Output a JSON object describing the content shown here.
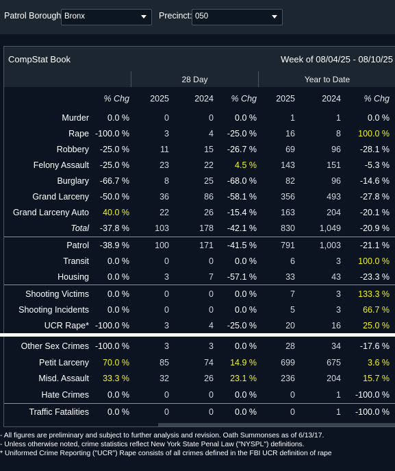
{
  "filters": {
    "borough_label": "Patrol Borough:",
    "borough_value": "Bronx",
    "precinct_label": "Precinct:",
    "precinct_value": "050"
  },
  "report": {
    "title": "CompStat Book",
    "week": "Week of 08/04/25 - 08/10/25",
    "group_28day": "28 Day",
    "group_ytd": "Year to Date"
  },
  "columns": [
    "% Chg",
    "2025",
    "2024",
    "% Chg",
    "2025",
    "2024",
    "% Chg"
  ],
  "rows": [
    {
      "label": "Murder",
      "italic": false,
      "c": [
        "0.0 %",
        "0",
        "0",
        "0.0 %",
        "1",
        "1",
        "0.0 %"
      ],
      "hi": [
        false,
        false,
        false,
        false,
        false,
        false,
        false
      ]
    },
    {
      "label": "Rape",
      "italic": false,
      "c": [
        "-100.0 %",
        "3",
        "4",
        "-25.0 %",
        "16",
        "8",
        "100.0 %"
      ],
      "hi": [
        false,
        false,
        false,
        false,
        false,
        false,
        true
      ]
    },
    {
      "label": "Robbery",
      "italic": false,
      "c": [
        "-25.0 %",
        "11",
        "15",
        "-26.7 %",
        "69",
        "96",
        "-28.1 %"
      ],
      "hi": [
        false,
        false,
        false,
        false,
        false,
        false,
        false
      ]
    },
    {
      "label": "Felony Assault",
      "italic": false,
      "c": [
        "-25.0 %",
        "23",
        "22",
        "4.5 %",
        "143",
        "151",
        "-5.3 %"
      ],
      "hi": [
        false,
        false,
        false,
        true,
        false,
        false,
        false
      ]
    },
    {
      "label": "Burglary",
      "italic": false,
      "c": [
        "-66.7 %",
        "8",
        "25",
        "-68.0 %",
        "82",
        "96",
        "-14.6 %"
      ],
      "hi": [
        false,
        false,
        false,
        false,
        false,
        false,
        false
      ]
    },
    {
      "label": "Grand Larceny",
      "italic": false,
      "c": [
        "-50.0 %",
        "36",
        "86",
        "-58.1 %",
        "356",
        "493",
        "-27.8 %"
      ],
      "hi": [
        false,
        false,
        false,
        false,
        false,
        false,
        false
      ]
    },
    {
      "label": "Grand Larceny Auto",
      "italic": false,
      "c": [
        "40.0 %",
        "22",
        "26",
        "-15.4 %",
        "163",
        "204",
        "-20.1 %"
      ],
      "hi": [
        true,
        false,
        false,
        false,
        false,
        false,
        false
      ]
    },
    {
      "label": "Total",
      "italic": true,
      "c": [
        "-37.8 %",
        "103",
        "178",
        "-42.1 %",
        "830",
        "1,049",
        "-20.9 %"
      ],
      "hi": [
        false,
        false,
        false,
        false,
        false,
        false,
        false
      ]
    },
    {
      "label": "Patrol",
      "italic": false,
      "c": [
        "-38.9 %",
        "100",
        "171",
        "-41.5 %",
        "791",
        "1,003",
        "-21.1 %"
      ],
      "hi": [
        false,
        false,
        false,
        false,
        false,
        false,
        false
      ]
    },
    {
      "label": "Transit",
      "italic": false,
      "c": [
        "0.0 %",
        "0",
        "0",
        "0.0 %",
        "6",
        "3",
        "100.0 %"
      ],
      "hi": [
        false,
        false,
        false,
        false,
        false,
        false,
        true
      ]
    },
    {
      "label": "Housing",
      "italic": false,
      "c": [
        "0.0 %",
        "3",
        "7",
        "-57.1 %",
        "33",
        "43",
        "-23.3 %"
      ],
      "hi": [
        false,
        false,
        false,
        false,
        false,
        false,
        false
      ]
    },
    {
      "label": "Shooting Victims",
      "italic": false,
      "c": [
        "0.0 %",
        "0",
        "0",
        "0.0 %",
        "7",
        "3",
        "133.3 %"
      ],
      "hi": [
        false,
        false,
        false,
        false,
        false,
        false,
        true
      ]
    },
    {
      "label": "Shooting Incidents",
      "italic": false,
      "c": [
        "0.0 %",
        "0",
        "0",
        "0.0 %",
        "5",
        "3",
        "66.7 %"
      ],
      "hi": [
        false,
        false,
        false,
        false,
        false,
        false,
        true
      ]
    },
    {
      "label": "UCR Rape*",
      "italic": false,
      "c": [
        "-100.0 %",
        "3",
        "4",
        "-25.0 %",
        "20",
        "16",
        "25.0 %"
      ],
      "hi": [
        false,
        false,
        false,
        false,
        false,
        false,
        true
      ]
    },
    {
      "label": "Other Sex Crimes",
      "italic": false,
      "c": [
        "-100.0 %",
        "3",
        "3",
        "0.0 %",
        "28",
        "34",
        "-17.6 %"
      ],
      "hi": [
        false,
        false,
        false,
        false,
        false,
        false,
        false
      ]
    },
    {
      "label": "Petit Larceny",
      "italic": false,
      "c": [
        "70.0 %",
        "85",
        "74",
        "14.9 %",
        "699",
        "675",
        "3.6 %"
      ],
      "hi": [
        true,
        false,
        false,
        true,
        false,
        false,
        true
      ]
    },
    {
      "label": "Misd. Assault",
      "italic": false,
      "c": [
        "33.3 %",
        "32",
        "26",
        "23.1 %",
        "236",
        "204",
        "15.7 %"
      ],
      "hi": [
        true,
        false,
        false,
        true,
        false,
        false,
        true
      ]
    },
    {
      "label": "Hate Crimes",
      "italic": false,
      "c": [
        "0.0 %",
        "0",
        "0",
        "0.0 %",
        "0",
        "1",
        "-100.0 %"
      ],
      "hi": [
        false,
        false,
        false,
        false,
        false,
        false,
        false
      ]
    },
    {
      "label": "Traffic Fatalities",
      "italic": false,
      "c": [
        "0.0 %",
        "0",
        "0",
        "0.0 %",
        "0",
        "1",
        "-100.0 %"
      ],
      "hi": [
        false,
        false,
        false,
        false,
        false,
        false,
        false
      ]
    }
  ],
  "footnotes": [
    "- All figures are preliminary and subject to further analysis and revision. Oath Summonses as of 6/13/17.",
    "- Unless otherwise noted, crime statistics reflect New York State Penal Law (\"NYSPL\") definitions.",
    "* Uniformed Crime Reporting (\"UCR\") Rape consists of all crimes defined in the FBI UCR definition of rape"
  ],
  "colors": {
    "background": "#0b1420",
    "header": "#1c2631",
    "highlight": "#f4f414",
    "number": "#d3d7dc"
  }
}
